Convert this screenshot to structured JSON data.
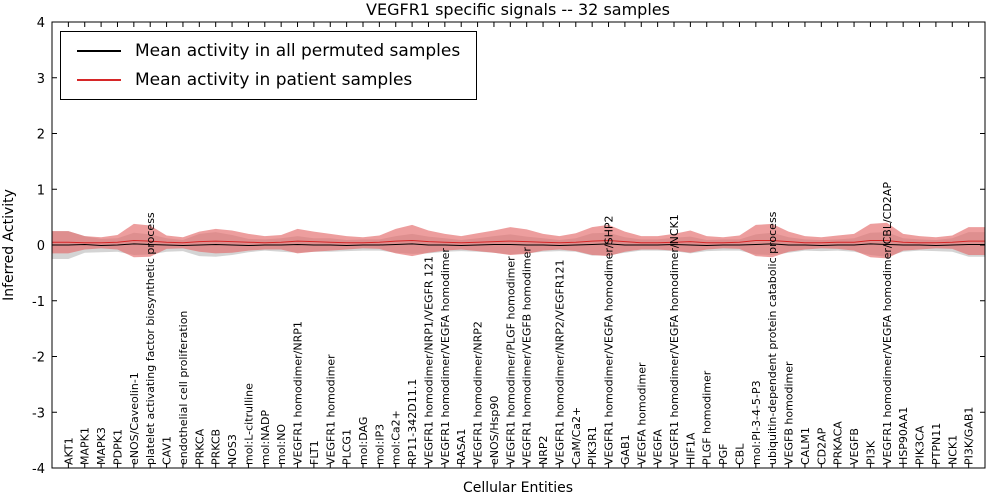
{
  "chart_data": {
    "type": "line",
    "title": "VEGFR1 specific signals -- 32 samples",
    "xlabel": "Cellular Entities",
    "ylabel": "Inferred Activity",
    "ylim": [
      -4,
      4
    ],
    "ytick_values": [
      -4,
      -3,
      -2,
      -1,
      0,
      1,
      2,
      3,
      4
    ],
    "ytick_labels": [
      "-4",
      "-3",
      "-2",
      "-1",
      "0",
      "1",
      "2",
      "3",
      "4"
    ],
    "grid": false,
    "legend_position": "upper left",
    "categories": [
      "AKT1",
      "MAPK1",
      "MAPK3",
      "PDPK1",
      "eNOS/Caveolin-1",
      "platelet activating factor biosynthetic process",
      "CAV1",
      "endothelial cell proliferation",
      "PRKCA",
      "PRKCB",
      "NOS3",
      "mol:L-citrulline",
      "mol:NADP",
      "mol:NO",
      "VEGFR1 homodimer/NRP1",
      "FLT1",
      "VEGFR1 homodimer",
      "PLCG1",
      "mol:DAG",
      "mol:IP3",
      "mol:Ca2+",
      "RP11-342D11.1",
      "VEGFR1 homodimer/NRP1/VEGFR 121",
      "VEGFR1 homodimer/VEGFA homodimer",
      "RASA1",
      "VEGFR1 homodimer/NRP2",
      "eNOS/Hsp90",
      "VEGFR1 homodimer/PLGF homodimer",
      "VEGFR1 homodimer/VEGFB homodimer",
      "NRP2",
      "VEGFR1 homodimer/NRP2/VEGFR121",
      "CaM/Ca2+",
      "PIK3R1",
      "VEGFR1 homodimer/VEGFA homodimer/SHP2",
      "GAB1",
      "VEGFA homodimer",
      "VEGFA",
      "VEGFR1 homodimer/VEGFA homodimer/NCK1",
      "HIF1A",
      "PLGF homodimer",
      "PGF",
      "CBL",
      "mol:PI-3-4-5-P3",
      "ubiquitin-dependent protein catabolic process",
      "VEGFB homodimer",
      "CALM1",
      "CD2AP",
      "PRKACA",
      "VEGFB",
      "PI3K",
      "VEGFR1 homodimer/VEGFA homodimer/CBL/CD2AP",
      "HSP90AA1",
      "PIK3CA",
      "PTPN11",
      "NCK1",
      "PI3K/GAB1"
    ],
    "series": [
      {
        "key": "permuted",
        "name": "Mean activity in all permuted samples",
        "color": "#000000",
        "band_color": "#b0b0b0",
        "band_opacity": 0.55,
        "values": [
          0.0,
          0.01,
          -0.01,
          0.0,
          0.02,
          0.01,
          0.0,
          -0.01,
          0.0,
          0.01,
          0.0,
          -0.01,
          0.0,
          0.0,
          0.01,
          0.0,
          0.0,
          -0.01,
          0.0,
          0.0,
          0.01,
          0.02,
          0.0,
          0.0,
          -0.01,
          0.0,
          0.01,
          0.01,
          0.0,
          0.0,
          -0.01,
          0.0,
          0.01,
          0.02,
          0.0,
          0.0,
          0.0,
          0.01,
          0.0,
          -0.01,
          0.0,
          0.0,
          0.01,
          0.02,
          0.0,
          0.0,
          -0.01,
          0.0,
          0.0,
          0.02,
          0.01,
          0.0,
          0.0,
          -0.01,
          0.0,
          0.01
        ],
        "band": [
          0.25,
          0.15,
          0.12,
          0.12,
          0.2,
          0.18,
          0.12,
          0.1,
          0.2,
          0.22,
          0.18,
          0.12,
          0.1,
          0.12,
          0.15,
          0.12,
          0.12,
          0.1,
          0.1,
          0.1,
          0.15,
          0.18,
          0.15,
          0.12,
          0.1,
          0.12,
          0.15,
          0.18,
          0.15,
          0.12,
          0.1,
          0.12,
          0.2,
          0.2,
          0.14,
          0.1,
          0.1,
          0.12,
          0.15,
          0.1,
          0.1,
          0.1,
          0.18,
          0.2,
          0.14,
          0.1,
          0.1,
          0.1,
          0.12,
          0.2,
          0.22,
          0.12,
          0.1,
          0.1,
          0.12,
          0.22
        ]
      },
      {
        "key": "patient",
        "name": "Mean activity in patient samples",
        "color": "#d62728",
        "band_color": "#e46a6a",
        "band_opacity": 0.65,
        "values": [
          0.05,
          0.04,
          0.04,
          0.05,
          0.08,
          0.07,
          0.05,
          0.04,
          0.06,
          0.07,
          0.06,
          0.05,
          0.04,
          0.05,
          0.07,
          0.06,
          0.05,
          0.04,
          0.04,
          0.05,
          0.07,
          0.08,
          0.06,
          0.05,
          0.04,
          0.05,
          0.06,
          0.07,
          0.06,
          0.05,
          0.04,
          0.05,
          0.07,
          0.08,
          0.06,
          0.04,
          0.04,
          0.05,
          0.06,
          0.04,
          0.04,
          0.05,
          0.08,
          0.08,
          0.06,
          0.04,
          0.04,
          0.05,
          0.05,
          0.08,
          0.08,
          0.05,
          0.04,
          0.04,
          0.05,
          0.07
        ],
        "band": [
          0.2,
          0.12,
          0.1,
          0.13,
          0.3,
          0.28,
          0.12,
          0.1,
          0.18,
          0.22,
          0.2,
          0.15,
          0.12,
          0.13,
          0.22,
          0.18,
          0.15,
          0.12,
          0.1,
          0.12,
          0.22,
          0.28,
          0.2,
          0.15,
          0.12,
          0.16,
          0.2,
          0.25,
          0.22,
          0.15,
          0.12,
          0.16,
          0.25,
          0.28,
          0.18,
          0.12,
          0.12,
          0.15,
          0.2,
          0.12,
          0.1,
          0.12,
          0.28,
          0.3,
          0.18,
          0.12,
          0.1,
          0.12,
          0.15,
          0.3,
          0.32,
          0.15,
          0.12,
          0.1,
          0.12,
          0.25
        ]
      }
    ]
  }
}
